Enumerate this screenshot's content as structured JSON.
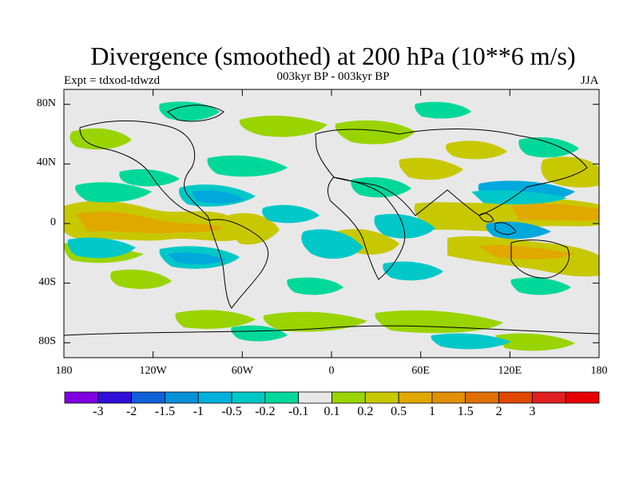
{
  "header": {
    "title": "Divergence (smoothed) at 200 hPa (10**6 m/s)",
    "subtitle": "003kyr BP - 003kyr BP",
    "left_label": "Expt = tdxod-tdwzd",
    "right_label": "JJA"
  },
  "map": {
    "y_ticks": [
      {
        "lat": 80,
        "label": "80N"
      },
      {
        "lat": 40,
        "label": "40N"
      },
      {
        "lat": 0,
        "label": "0"
      },
      {
        "lat": -40,
        "label": "40S"
      },
      {
        "lat": -80,
        "label": "80S"
      }
    ],
    "x_ticks": [
      {
        "lon": -180,
        "label": "180"
      },
      {
        "lon": -120,
        "label": "120W"
      },
      {
        "lon": -60,
        "label": "60W"
      },
      {
        "lon": 0,
        "label": "0"
      },
      {
        "lon": 60,
        "label": "60E"
      },
      {
        "lon": 120,
        "label": "120E"
      },
      {
        "lon": 180,
        "label": "180"
      }
    ],
    "colors": {
      "background": "#e8e8e8",
      "pos_weak": "#99d400",
      "pos_mid": "#c8c800",
      "pos_strong": "#e0a800",
      "pos_stronger": "#e08000",
      "neg_weak": "#00d89a",
      "neg_mid": "#00c8c8",
      "neg_strong": "#00a8dc"
    }
  },
  "colorbar": {
    "colors": [
      "#8000e0",
      "#3010d8",
      "#1060d8",
      "#0890d8",
      "#00b0dc",
      "#00c8c8",
      "#00d89a",
      "#e8e8e8",
      "#99d400",
      "#c8c800",
      "#e0a800",
      "#e09000",
      "#e07000",
      "#e04800",
      "#e02020",
      "#e80000"
    ],
    "labels": [
      "-3",
      "-2",
      "-1.5",
      "-1",
      "-0.5",
      "-0.2",
      "-0.1",
      "0.1",
      "0.2",
      "0.5",
      "1",
      "1.5",
      "2",
      "3"
    ]
  }
}
